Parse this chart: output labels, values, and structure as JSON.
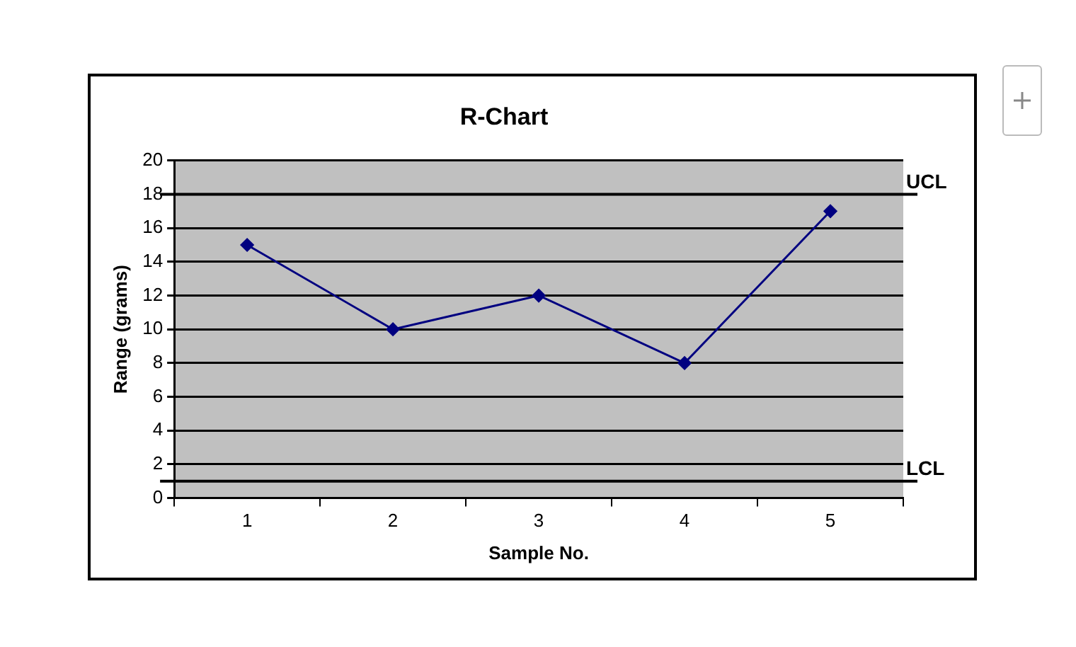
{
  "chart_data": {
    "type": "line",
    "title": "R-Chart",
    "xlabel": "Sample No.",
    "ylabel": "Range (grams)",
    "categories": [
      "1",
      "2",
      "3",
      "4",
      "5"
    ],
    "series": [
      {
        "color": "#000080",
        "values": [
          15,
          10,
          12,
          8,
          17
        ]
      }
    ],
    "ylim": [
      0,
      20
    ],
    "yticks": [
      0,
      2,
      4,
      6,
      8,
      10,
      12,
      14,
      16,
      18,
      20
    ],
    "grid": "y",
    "legend": false,
    "marker": "diamond",
    "line_style": "solid",
    "ref_lines": [
      {
        "axis": "y",
        "value": 18,
        "label": "UCL",
        "color": "#000000"
      },
      {
        "axis": "y",
        "value": 1,
        "label": "LCL",
        "color": "#000000"
      }
    ]
  }
}
